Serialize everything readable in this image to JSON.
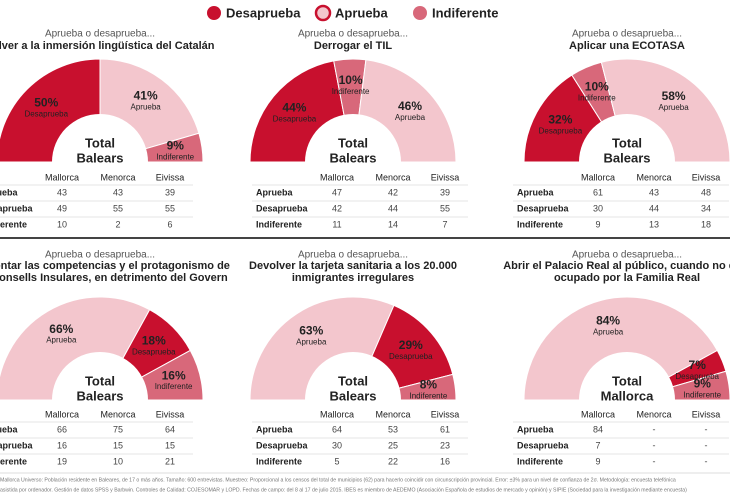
{
  "legend": [
    {
      "name": "Desaprueba",
      "color": "#c8102e"
    },
    {
      "name": "Aprueba",
      "color": "#f3c6cd"
    },
    {
      "name": "Indiferente",
      "color": "#d8687a"
    }
  ],
  "chart_data": [
    {
      "type": "half-donut",
      "subtitle": "Aprueba o desaprueba...",
      "title": [
        "Volver a la inmersión lingüística del Catalán"
      ],
      "categories": [
        "Desaprueba",
        "Aprueba",
        "Indiferente"
      ],
      "values": [
        50,
        41,
        9
      ],
      "value_labels": [
        "50%",
        "41%",
        "9%"
      ],
      "center": [
        "Total",
        "Balears"
      ],
      "table": {
        "columns": [
          "Mallorca",
          "Menorca",
          "Eivissa"
        ],
        "rows": [
          {
            "label": "Aprueba",
            "values": [
              43,
              43,
              39
            ]
          },
          {
            "label": "Desaprueba",
            "values": [
              49,
              55,
              55
            ]
          },
          {
            "label": "Indiferente",
            "values": [
              10,
              2,
              6
            ]
          }
        ]
      }
    },
    {
      "type": "half-donut",
      "subtitle": "Aprueba o desaprueba...",
      "title": [
        "Derrogar el TIL"
      ],
      "categories": [
        "Desaprueba",
        "Indiferente",
        "Aprueba"
      ],
      "values": [
        44,
        10,
        46
      ],
      "value_labels": [
        "44%",
        "10%",
        "46%"
      ],
      "center": [
        "Total",
        "Balears"
      ],
      "table": {
        "columns": [
          "Mallorca",
          "Menorca",
          "Eivissa"
        ],
        "rows": [
          {
            "label": "Aprueba",
            "values": [
              47,
              42,
              39
            ]
          },
          {
            "label": "Desaprueba",
            "values": [
              42,
              44,
              55
            ]
          },
          {
            "label": "Indiferente",
            "values": [
              11,
              14,
              7
            ]
          }
        ]
      }
    },
    {
      "type": "half-donut",
      "subtitle": "Aprueba o desaprueba...",
      "title": [
        "Aplicar una ECOTASA"
      ],
      "categories": [
        "Desaprueba",
        "Indiferente",
        "Aprueba"
      ],
      "values": [
        32,
        10,
        58
      ],
      "value_labels": [
        "32%",
        "10%",
        "58%"
      ],
      "center": [
        "Total",
        "Balears"
      ],
      "table": {
        "columns": [
          "Mallorca",
          "Menorca",
          "Eivissa"
        ],
        "rows": [
          {
            "label": "Aprueba",
            "values": [
              61,
              43,
              48
            ]
          },
          {
            "label": "Desaprueba",
            "values": [
              30,
              44,
              34
            ]
          },
          {
            "label": "Indiferente",
            "values": [
              9,
              13,
              18
            ]
          }
        ]
      }
    },
    {
      "type": "half-donut",
      "subtitle": "Aprueba o desaprueba...",
      "title": [
        "Aumentar las competencias y el protagonismo de",
        "los Consells Insulares, en detrimento del Govern"
      ],
      "categories": [
        "Aprueba",
        "Desaprueba",
        "Indiferente"
      ],
      "values": [
        66,
        18,
        16
      ],
      "value_labels": [
        "66%",
        "18%",
        "16%"
      ],
      "center": [
        "Total",
        "Balears"
      ],
      "table": {
        "columns": [
          "Mallorca",
          "Menorca",
          "Eivissa"
        ],
        "rows": [
          {
            "label": "Aprueba",
            "values": [
              66,
              75,
              64
            ]
          },
          {
            "label": "Desaprueba",
            "values": [
              16,
              15,
              15
            ]
          },
          {
            "label": "Indiferente",
            "values": [
              19,
              10,
              21
            ]
          }
        ]
      }
    },
    {
      "type": "half-donut",
      "subtitle": "Aprueba o desaprueba...",
      "title": [
        "Devolver la tarjeta sanitaria a los 20.000",
        "inmigrantes irregulares"
      ],
      "categories": [
        "Aprueba",
        "Desaprueba",
        "Indiferente"
      ],
      "values": [
        63,
        29,
        8
      ],
      "value_labels": [
        "63%",
        "29%",
        "8%"
      ],
      "center": [
        "Total",
        "Balears"
      ],
      "table": {
        "columns": [
          "Mallorca",
          "Menorca",
          "Eivissa"
        ],
        "rows": [
          {
            "label": "Aprueba",
            "values": [
              64,
              53,
              61
            ]
          },
          {
            "label": "Desaprueba",
            "values": [
              30,
              25,
              23
            ]
          },
          {
            "label": "Indiferente",
            "values": [
              5,
              22,
              16
            ]
          }
        ]
      }
    },
    {
      "type": "half-donut",
      "subtitle": "Aprueba o desaprueba...",
      "title": [
        "Abrir el Palacio Real al público, cuando no esté",
        "ocupado por la Familia Real"
      ],
      "categories": [
        "Aprueba",
        "Desaprueba",
        "Indiferente"
      ],
      "values": [
        84,
        7,
        9
      ],
      "value_labels": [
        "84%",
        "7%",
        "9%"
      ],
      "center": [
        "Total",
        "Mallorca"
      ],
      "table": {
        "columns": [
          "Mallorca",
          "Menorca",
          "Eivissa"
        ],
        "rows": [
          {
            "label": "Aprueba",
            "values": [
              84,
              "-",
              "-"
            ]
          },
          {
            "label": "Desaprueba",
            "values": [
              7,
              "-",
              "-"
            ]
          },
          {
            "label": "Indiferente",
            "values": [
              9,
              "-",
              "-"
            ]
          }
        ]
      }
    }
  ],
  "footer": [
    "Mallorca Universo: Población residente en Baleares, de 17 o más años. Tamaño: 600 entrevistas. Muestreo: Proporcional a los censos del total de municipios (62) para hacerlo coincidir con circunscripción provincial. Error: ±3% para un nivel de confianza de 2σ. Metodología: encuesta telefónica",
    "asistida por ordenador. Gestión de datos SPSS y Barbwin. Controles de Calidad: COJESOMAR y LOPD. Fechas de campo: del 8 al 17 de julio 2015. IBES es miembro de AEDEMO (Asociación Española de estudios de mercado y opinión) y SIPIE (Sociedad para la investigación mediante encuesta)"
  ]
}
